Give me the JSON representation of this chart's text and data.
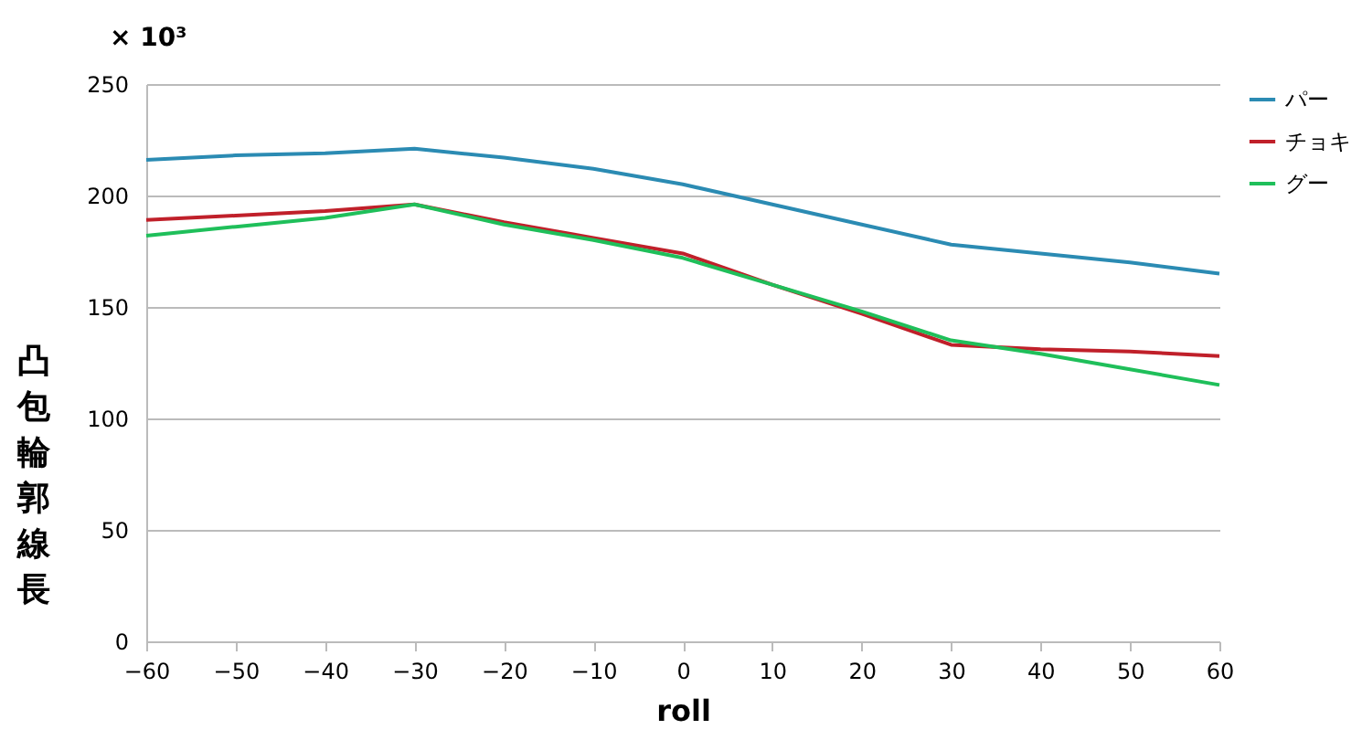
{
  "chart_data": {
    "type": "line",
    "xlabel": "roll",
    "ylabel": "凸包輪郭線長",
    "annotations": [
      "× 10³"
    ],
    "x": [
      -60,
      -50,
      -40,
      -30,
      -20,
      -10,
      0,
      10,
      20,
      30,
      40,
      50,
      60
    ],
    "series": [
      {
        "name": "パー",
        "color": "#2b8bb3",
        "values": [
          216,
          218,
          219,
          221,
          217,
          212,
          205,
          196,
          187,
          178,
          174,
          170,
          165
        ]
      },
      {
        "name": "チョキ",
        "color": "#c0202a",
        "values": [
          189,
          191,
          193,
          196,
          188,
          181,
          174,
          160,
          147,
          133,
          131,
          130,
          128
        ]
      },
      {
        "name": "グー",
        "color": "#1fbf5a",
        "values": [
          182,
          186,
          190,
          196,
          187,
          180,
          172,
          160,
          148,
          135,
          129,
          122,
          115
        ]
      }
    ],
    "xlim": [
      -60,
      60
    ],
    "xticks": [
      -60,
      -50,
      -40,
      -30,
      -20,
      -10,
      0,
      10,
      20,
      30,
      40,
      50,
      60
    ],
    "ylim": [
      0,
      250
    ],
    "yticks": [
      0,
      50,
      100,
      150,
      200,
      250
    ],
    "grid": "y",
    "legend": "right",
    "marker": "none",
    "line_style": "solid"
  }
}
